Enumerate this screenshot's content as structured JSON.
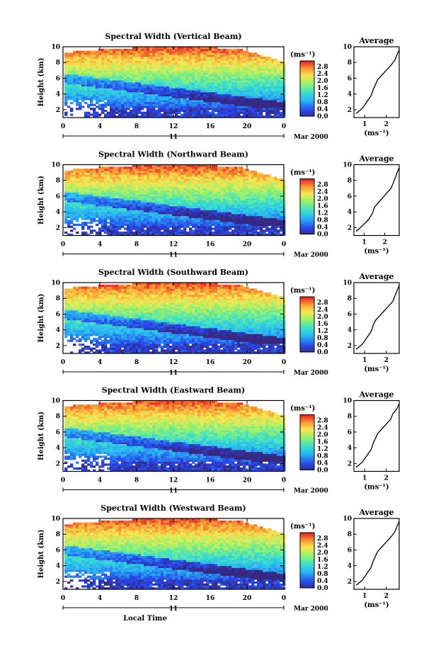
{
  "chart_data": [
    {
      "type": "heatmap",
      "title": "Spectral Width (Vertical Beam)",
      "ylabel": "Height (km)",
      "xlim": [
        0,
        24
      ],
      "ylim": [
        1,
        10
      ],
      "xticks": [
        "0",
        "4",
        "8",
        "12",
        "16",
        "20",
        "0"
      ],
      "yticks": [
        "2",
        "4",
        "6",
        "8",
        "10"
      ],
      "date_label": "11",
      "month_label": "Mar 2000",
      "colorbar": {
        "unit": "(ms⁻¹)",
        "ticks": [
          "2.8",
          "2.4",
          "2.0",
          "1.6",
          "1.2",
          "0.8",
          "0.4",
          "0.0"
        ]
      },
      "average": {
        "title": "Average",
        "xlabel": "(ms⁻¹)",
        "xticks": [
          "1",
          "2"
        ],
        "yticks": [
          "2",
          "4",
          "6",
          "8",
          "10"
        ],
        "xlim": [
          0.5,
          2.6
        ],
        "x": [
          0.6,
          0.9,
          1.1,
          1.3,
          1.4,
          1.5,
          1.6,
          1.8,
          2.0,
          2.2,
          2.4,
          2.5,
          2.6
        ],
        "y": [
          1.5,
          2.2,
          3.0,
          3.8,
          4.6,
          5.2,
          5.8,
          6.4,
          7.0,
          7.6,
          8.3,
          9.0,
          9.6
        ]
      }
    },
    {
      "type": "heatmap",
      "title": "Spectral Width (Northward Beam)",
      "ylabel": "Height (km)",
      "xlim": [
        0,
        24
      ],
      "ylim": [
        1,
        10
      ],
      "xticks": [
        "0",
        "4",
        "8",
        "12",
        "16",
        "20",
        "0"
      ],
      "yticks": [
        "2",
        "4",
        "6",
        "8",
        "10"
      ],
      "date_label": "11",
      "month_label": "Mar 2000",
      "colorbar": {
        "unit": "(ms⁻¹)",
        "ticks": [
          "2.8",
          "2.4",
          "2.0",
          "1.6",
          "1.2",
          "0.8",
          "0.4",
          "0.0"
        ]
      },
      "average": {
        "title": "Average",
        "xlabel": "(ms⁻¹)",
        "xticks": [
          "1",
          "2"
        ],
        "yticks": [
          "2",
          "4",
          "6",
          "8",
          "10"
        ],
        "xlim": [
          0.5,
          2.7
        ],
        "x": [
          0.6,
          0.9,
          1.2,
          1.4,
          1.5,
          1.7,
          1.9,
          2.1,
          2.3,
          2.4,
          2.5,
          2.6,
          2.7
        ],
        "y": [
          1.5,
          2.2,
          3.0,
          3.8,
          4.6,
          5.2,
          5.8,
          6.4,
          7.0,
          7.6,
          8.3,
          9.0,
          9.6
        ]
      }
    },
    {
      "type": "heatmap",
      "title": "Spectral Width (Southward Beam)",
      "ylabel": "Height (km)",
      "xlim": [
        0,
        24
      ],
      "ylim": [
        1,
        10
      ],
      "xticks": [
        "0",
        "4",
        "8",
        "12",
        "16",
        "20",
        "0"
      ],
      "yticks": [
        "2",
        "4",
        "6",
        "8",
        "10"
      ],
      "date_label": "11",
      "month_label": "Mar 2000",
      "colorbar": {
        "unit": "(ms⁻¹)",
        "ticks": [
          "2.8",
          "2.4",
          "2.0",
          "1.6",
          "1.2",
          "0.8",
          "0.4",
          "0.0"
        ]
      },
      "average": {
        "title": "Average",
        "xlabel": "(ms⁻¹)",
        "xticks": [
          "1",
          "2"
        ],
        "yticks": [
          "2",
          "4",
          "6",
          "8",
          "10"
        ],
        "xlim": [
          0.5,
          2.6
        ],
        "x": [
          0.6,
          0.9,
          1.1,
          1.3,
          1.4,
          1.5,
          1.7,
          1.9,
          2.1,
          2.3,
          2.4,
          2.5,
          2.6
        ],
        "y": [
          1.5,
          2.2,
          3.0,
          3.8,
          4.6,
          5.2,
          5.8,
          6.4,
          7.0,
          7.6,
          8.3,
          9.0,
          9.6
        ]
      }
    },
    {
      "type": "heatmap",
      "title": "Spectral Width (Eastward Beam)",
      "ylabel": "Height (km)",
      "xlim": [
        0,
        24
      ],
      "ylim": [
        1,
        10
      ],
      "xticks": [
        "0",
        "4",
        "8",
        "12",
        "16",
        "20",
        "0"
      ],
      "yticks": [
        "2",
        "4",
        "6",
        "8",
        "10"
      ],
      "date_label": "11",
      "month_label": "Mar 2000",
      "colorbar": {
        "unit": "(ms⁻¹)",
        "ticks": [
          "2.8",
          "2.4",
          "2.0",
          "1.6",
          "1.2",
          "0.8",
          "0.4",
          "0.0"
        ]
      },
      "average": {
        "title": "Average",
        "xlabel": "(ms⁻¹)",
        "xticks": [
          "1",
          "2"
        ],
        "yticks": [
          "2",
          "4",
          "6",
          "8",
          "10"
        ],
        "xlim": [
          0.5,
          2.6
        ],
        "x": [
          0.6,
          0.9,
          1.1,
          1.3,
          1.4,
          1.5,
          1.6,
          1.8,
          2.0,
          2.2,
          2.3,
          2.5,
          2.6
        ],
        "y": [
          1.5,
          2.2,
          3.0,
          3.8,
          4.6,
          5.2,
          5.8,
          6.4,
          7.0,
          7.6,
          8.3,
          9.0,
          9.6
        ]
      }
    },
    {
      "type": "heatmap",
      "title": "Spectral Width (Westward Beam)",
      "ylabel": "Height (km)",
      "xlabel": "Local Time",
      "xlim": [
        0,
        24
      ],
      "ylim": [
        1,
        10
      ],
      "xticks": [
        "0",
        "4",
        "8",
        "12",
        "16",
        "20",
        "0"
      ],
      "yticks": [
        "2",
        "4",
        "6",
        "8",
        "10"
      ],
      "date_label": "11",
      "month_label": "Mar 2000",
      "colorbar": {
        "unit": "(ms⁻¹)",
        "ticks": [
          "2.8",
          "2.4",
          "2.0",
          "1.6",
          "1.2",
          "0.8",
          "0.4",
          "0.0"
        ]
      },
      "average": {
        "title": "Average",
        "xlabel": "(ms⁻¹)",
        "xticks": [
          "1",
          "2"
        ],
        "yticks": [
          "2",
          "4",
          "6",
          "8",
          "10"
        ],
        "xlim": [
          0.5,
          2.6
        ],
        "x": [
          0.6,
          0.9,
          1.1,
          1.3,
          1.4,
          1.5,
          1.6,
          1.8,
          2.0,
          2.2,
          2.4,
          2.5,
          2.6
        ],
        "y": [
          1.5,
          2.2,
          3.0,
          3.8,
          4.6,
          5.2,
          5.8,
          6.4,
          7.0,
          7.6,
          8.3,
          9.0,
          9.6
        ]
      }
    }
  ]
}
